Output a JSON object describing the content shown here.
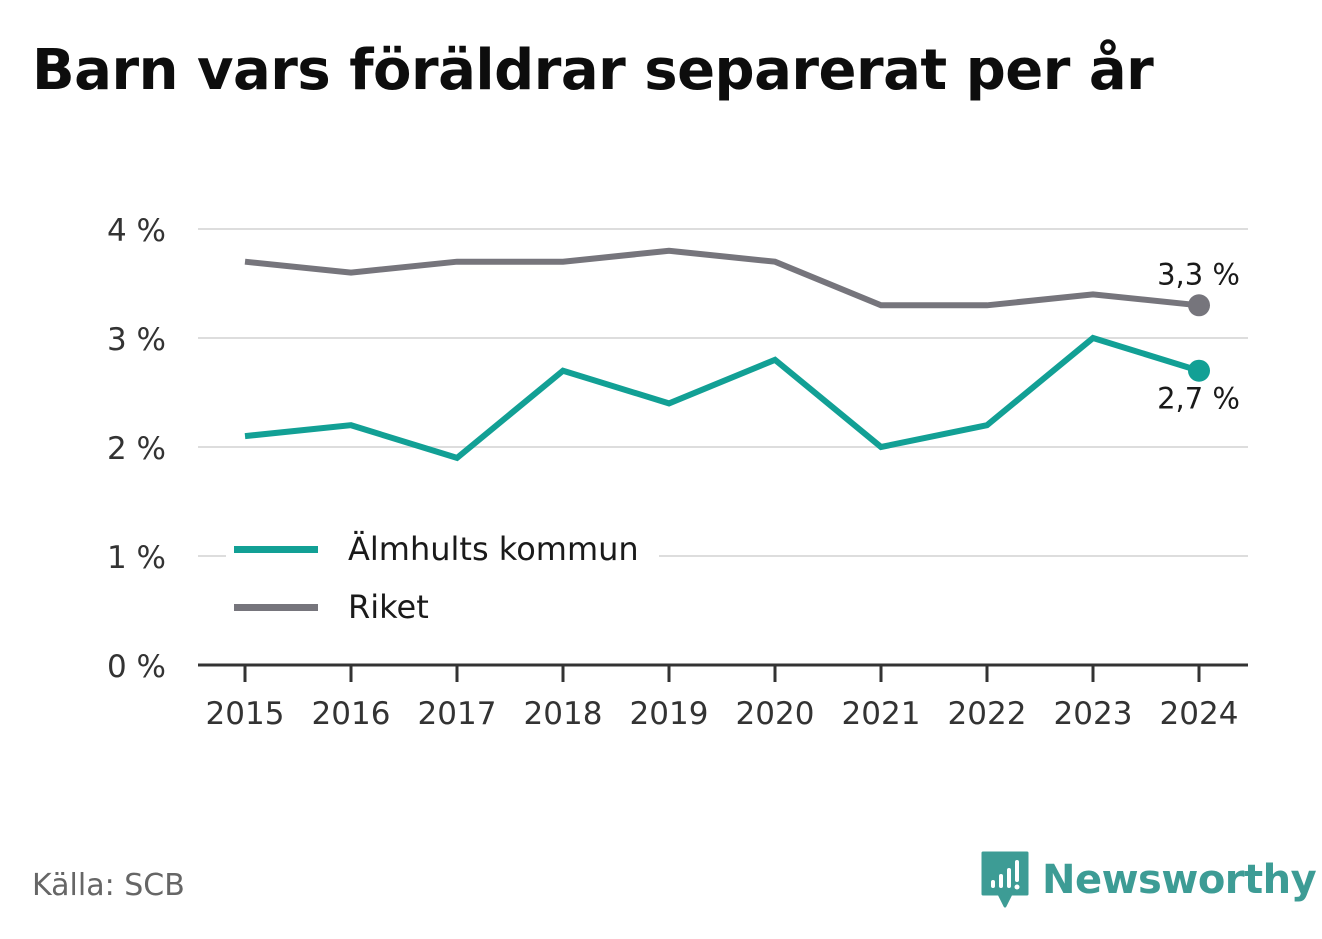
{
  "title": "Barn vars föräldrar separerat per år",
  "source": "Källa: SCB",
  "brand": {
    "name": "Newsworthy",
    "color": "#3d9c95",
    "icon": "newsworthy-logo-icon"
  },
  "chart_data": {
    "type": "line",
    "title": "Barn vars föräldrar separerat per år",
    "xlabel": "",
    "ylabel": "",
    "categories": [
      "2015",
      "2016",
      "2017",
      "2018",
      "2019",
      "2020",
      "2021",
      "2022",
      "2023",
      "2024"
    ],
    "y_ticks": [
      0,
      1,
      2,
      3,
      4
    ],
    "y_tick_labels": [
      "0 %",
      "1 %",
      "2 %",
      "3 %",
      "4 %"
    ],
    "ylim": [
      0,
      4
    ],
    "grid": true,
    "legend_position": "bottom-left",
    "series": [
      {
        "name": "Älmhults kommun",
        "color": "#12a095",
        "values": [
          2.1,
          2.2,
          1.9,
          2.7,
          2.4,
          2.8,
          2.0,
          2.2,
          3.0,
          2.7
        ],
        "end_label": "2,7 %",
        "end_label_position": "below"
      },
      {
        "name": "Riket",
        "color": "#76757c",
        "values": [
          3.7,
          3.6,
          3.7,
          3.7,
          3.8,
          3.7,
          3.3,
          3.3,
          3.4,
          3.3
        ],
        "end_label": "3,3 %",
        "end_label_position": "above"
      }
    ]
  }
}
